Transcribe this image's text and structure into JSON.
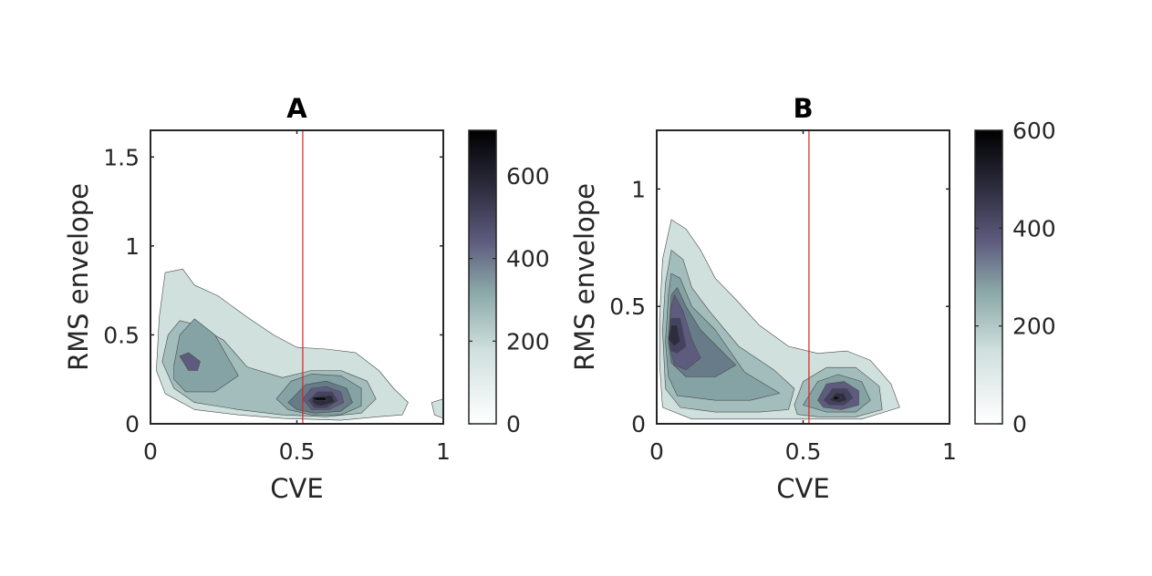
{
  "chart_data": [
    {
      "type": "contour",
      "title": "A",
      "xlabel": "CVE",
      "ylabel": "RMS envelope",
      "xlim": [
        0,
        1
      ],
      "ylim": [
        0,
        1.65
      ],
      "xticks": [
        0,
        0.5,
        1
      ],
      "xtick_labels": [
        "0",
        "0.5",
        "1"
      ],
      "yticks": [
        0,
        0.5,
        1,
        1.5
      ],
      "ytick_labels": [
        "0",
        "0.5",
        "1",
        "1.5"
      ],
      "reference_line_x": 0.52,
      "reference_line_color": "#e02020",
      "colorbar": {
        "range": [
          0,
          710
        ],
        "ticks": [
          0,
          200,
          400,
          600
        ],
        "tick_labels": [
          "0",
          "200",
          "400",
          "600"
        ]
      },
      "colormap": "bone (reversed)",
      "contour_levels": [
        {
          "level": 60,
          "color": "#cfe0dd",
          "polygons": [
            [
              [
                0.03,
                0.6
              ],
              [
                0.05,
                0.85
              ],
              [
                0.11,
                0.87
              ],
              [
                0.15,
                0.78
              ],
              [
                0.23,
                0.72
              ],
              [
                0.33,
                0.6
              ],
              [
                0.42,
                0.5
              ],
              [
                0.5,
                0.43
              ],
              [
                0.6,
                0.42
              ],
              [
                0.7,
                0.4
              ],
              [
                0.78,
                0.3
              ],
              [
                0.83,
                0.2
              ],
              [
                0.88,
                0.12
              ],
              [
                0.86,
                0.05
              ],
              [
                0.78,
                0.04
              ],
              [
                0.65,
                0.02
              ],
              [
                0.45,
                0.03
              ],
              [
                0.3,
                0.05
              ],
              [
                0.15,
                0.08
              ],
              [
                0.05,
                0.17
              ],
              [
                0.02,
                0.3
              ]
            ],
            [
              [
                0.96,
                0.12
              ],
              [
                1.0,
                0.14
              ],
              [
                1.0,
                0.03
              ],
              [
                0.97,
                0.05
              ]
            ]
          ]
        },
        {
          "level": 130,
          "color": "#a2bdbb",
          "polygons": [
            [
              [
                0.04,
                0.35
              ],
              [
                0.06,
                0.5
              ],
              [
                0.1,
                0.58
              ],
              [
                0.15,
                0.56
              ],
              [
                0.25,
                0.47
              ],
              [
                0.33,
                0.32
              ],
              [
                0.45,
                0.26
              ],
              [
                0.55,
                0.3
              ],
              [
                0.65,
                0.3
              ],
              [
                0.74,
                0.24
              ],
              [
                0.77,
                0.14
              ],
              [
                0.72,
                0.06
              ],
              [
                0.6,
                0.04
              ],
              [
                0.45,
                0.05
              ],
              [
                0.3,
                0.08
              ],
              [
                0.15,
                0.12
              ],
              [
                0.08,
                0.2
              ]
            ]
          ]
        },
        {
          "level": 220,
          "color": "#85a2a4",
          "polygons": [
            [
              [
                0.08,
                0.33
              ],
              [
                0.1,
                0.5
              ],
              [
                0.15,
                0.59
              ],
              [
                0.22,
                0.5
              ],
              [
                0.3,
                0.27
              ],
              [
                0.22,
                0.18
              ],
              [
                0.12,
                0.18
              ],
              [
                0.08,
                0.25
              ]
            ],
            [
              [
                0.43,
                0.14
              ],
              [
                0.48,
                0.24
              ],
              [
                0.55,
                0.28
              ],
              [
                0.65,
                0.27
              ],
              [
                0.72,
                0.2
              ],
              [
                0.72,
                0.1
              ],
              [
                0.65,
                0.05
              ],
              [
                0.55,
                0.05
              ],
              [
                0.47,
                0.08
              ]
            ]
          ]
        },
        {
          "level": 300,
          "color": "#677c88",
          "polygons": [
            [
              [
                0.47,
                0.12
              ],
              [
                0.53,
                0.22
              ],
              [
                0.6,
                0.24
              ],
              [
                0.67,
                0.2
              ],
              [
                0.69,
                0.12
              ],
              [
                0.65,
                0.07
              ],
              [
                0.56,
                0.06
              ],
              [
                0.5,
                0.08
              ]
            ]
          ]
        },
        {
          "level": 380,
          "color": "#5e5c7e",
          "polygons": [
            [
              [
                0.1,
                0.38
              ],
              [
                0.13,
                0.4
              ],
              [
                0.17,
                0.35
              ],
              [
                0.16,
                0.3
              ],
              [
                0.13,
                0.3
              ]
            ],
            [
              [
                0.52,
                0.14
              ],
              [
                0.55,
                0.2
              ],
              [
                0.6,
                0.21
              ],
              [
                0.65,
                0.18
              ],
              [
                0.66,
                0.12
              ],
              [
                0.61,
                0.08
              ],
              [
                0.55,
                0.08
              ]
            ]
          ]
        },
        {
          "level": 460,
          "color": "#434262",
          "polygons": [
            [
              [
                0.54,
                0.13
              ],
              [
                0.57,
                0.18
              ],
              [
                0.62,
                0.18
              ],
              [
                0.64,
                0.13
              ],
              [
                0.6,
                0.09
              ],
              [
                0.56,
                0.09
              ]
            ]
          ]
        },
        {
          "level": 540,
          "color": "#2e2d40",
          "polygons": [
            [
              [
                0.55,
                0.13
              ],
              [
                0.58,
                0.16
              ],
              [
                0.62,
                0.16
              ],
              [
                0.63,
                0.12
              ],
              [
                0.58,
                0.1
              ],
              [
                0.56,
                0.11
              ]
            ]
          ]
        },
        {
          "level": 640,
          "color": "#0d0d12",
          "polygons": [
            [
              [
                0.55,
                0.14
              ],
              [
                0.56,
                0.15
              ],
              [
                0.6,
                0.15
              ],
              [
                0.6,
                0.13
              ],
              [
                0.57,
                0.13
              ]
            ]
          ]
        }
      ]
    },
    {
      "type": "contour",
      "title": "B",
      "xlabel": "CVE",
      "ylabel": "RMS envelope",
      "xlim": [
        0,
        1
      ],
      "ylim": [
        0,
        1.25
      ],
      "xticks": [
        0,
        0.5,
        1
      ],
      "xtick_labels": [
        "0",
        "0.5",
        "1"
      ],
      "yticks": [
        0,
        0.5,
        1
      ],
      "ytick_labels": [
        "0",
        "0.5",
        "1"
      ],
      "reference_line_x": 0.52,
      "reference_line_color": "#e02020",
      "colorbar": {
        "range": [
          0,
          600
        ],
        "ticks": [
          0,
          200,
          400,
          600
        ],
        "tick_labels": [
          "0",
          "200",
          "400",
          "600"
        ]
      },
      "colormap": "bone (reversed)",
      "contour_levels": [
        {
          "level": 60,
          "color": "#cfe0dd",
          "polygons": [
            [
              [
                0.01,
                0.45
              ],
              [
                0.02,
                0.7
              ],
              [
                0.05,
                0.87
              ],
              [
                0.1,
                0.83
              ],
              [
                0.15,
                0.74
              ],
              [
                0.2,
                0.62
              ],
              [
                0.27,
                0.53
              ],
              [
                0.35,
                0.42
              ],
              [
                0.45,
                0.33
              ],
              [
                0.55,
                0.3
              ],
              [
                0.65,
                0.31
              ],
              [
                0.73,
                0.27
              ],
              [
                0.8,
                0.17
              ],
              [
                0.83,
                0.07
              ],
              [
                0.7,
                0.02
              ],
              [
                0.5,
                0.02
              ],
              [
                0.3,
                0.02
              ],
              [
                0.12,
                0.02
              ],
              [
                0.02,
                0.07
              ],
              [
                0.01,
                0.25
              ]
            ]
          ]
        },
        {
          "level": 130,
          "color": "#a2bdbb",
          "polygons": [
            [
              [
                0.02,
                0.4
              ],
              [
                0.03,
                0.6
              ],
              [
                0.05,
                0.74
              ],
              [
                0.09,
                0.7
              ],
              [
                0.12,
                0.58
              ],
              [
                0.18,
                0.48
              ],
              [
                0.28,
                0.33
              ],
              [
                0.4,
                0.23
              ],
              [
                0.47,
                0.15
              ],
              [
                0.45,
                0.06
              ],
              [
                0.35,
                0.05
              ],
              [
                0.2,
                0.05
              ],
              [
                0.08,
                0.07
              ],
              [
                0.03,
                0.15
              ]
            ],
            [
              [
                0.47,
                0.08
              ],
              [
                0.5,
                0.18
              ],
              [
                0.58,
                0.24
              ],
              [
                0.68,
                0.24
              ],
              [
                0.76,
                0.16
              ],
              [
                0.77,
                0.06
              ],
              [
                0.68,
                0.03
              ],
              [
                0.55,
                0.03
              ],
              [
                0.48,
                0.04
              ]
            ]
          ]
        },
        {
          "level": 220,
          "color": "#85a2a4",
          "polygons": [
            [
              [
                0.03,
                0.35
              ],
              [
                0.04,
                0.55
              ],
              [
                0.05,
                0.64
              ],
              [
                0.08,
                0.62
              ],
              [
                0.12,
                0.5
              ],
              [
                0.2,
                0.4
              ],
              [
                0.3,
                0.22
              ],
              [
                0.42,
                0.13
              ],
              [
                0.32,
                0.1
              ],
              [
                0.2,
                0.1
              ],
              [
                0.07,
                0.12
              ],
              [
                0.04,
                0.2
              ]
            ],
            [
              [
                0.5,
                0.08
              ],
              [
                0.55,
                0.18
              ],
              [
                0.62,
                0.21
              ],
              [
                0.7,
                0.18
              ],
              [
                0.73,
                0.1
              ],
              [
                0.68,
                0.05
              ],
              [
                0.58,
                0.05
              ]
            ]
          ]
        },
        {
          "level": 300,
          "color": "#677c88",
          "polygons": [
            [
              [
                0.04,
                0.35
              ],
              [
                0.05,
                0.55
              ],
              [
                0.07,
                0.58
              ],
              [
                0.1,
                0.5
              ],
              [
                0.15,
                0.4
              ],
              [
                0.27,
                0.25
              ],
              [
                0.2,
                0.2
              ],
              [
                0.1,
                0.2
              ],
              [
                0.05,
                0.26
              ]
            ]
          ]
        },
        {
          "level": 380,
          "color": "#5e5c7e",
          "polygons": [
            [
              [
                0.04,
                0.35
              ],
              [
                0.05,
                0.5
              ],
              [
                0.06,
                0.55
              ],
              [
                0.09,
                0.48
              ],
              [
                0.12,
                0.36
              ],
              [
                0.15,
                0.28
              ],
              [
                0.1,
                0.23
              ],
              [
                0.06,
                0.25
              ]
            ],
            [
              [
                0.55,
                0.1
              ],
              [
                0.58,
                0.17
              ],
              [
                0.64,
                0.18
              ],
              [
                0.69,
                0.14
              ],
              [
                0.69,
                0.08
              ],
              [
                0.63,
                0.06
              ],
              [
                0.57,
                0.07
              ]
            ]
          ]
        },
        {
          "level": 460,
          "color": "#434262",
          "polygons": [
            [
              [
                0.04,
                0.37
              ],
              [
                0.05,
                0.45
              ],
              [
                0.08,
                0.45
              ],
              [
                0.1,
                0.33
              ],
              [
                0.07,
                0.3
              ],
              [
                0.05,
                0.31
              ]
            ],
            [
              [
                0.57,
                0.1
              ],
              [
                0.6,
                0.15
              ],
              [
                0.65,
                0.15
              ],
              [
                0.67,
                0.11
              ],
              [
                0.64,
                0.08
              ],
              [
                0.59,
                0.08
              ]
            ]
          ]
        },
        {
          "level": 540,
          "color": "#2e2d40",
          "polygons": [
            [
              [
                0.04,
                0.36
              ],
              [
                0.05,
                0.42
              ],
              [
                0.07,
                0.42
              ],
              [
                0.08,
                0.35
              ],
              [
                0.06,
                0.33
              ]
            ],
            [
              [
                0.59,
                0.1
              ],
              [
                0.61,
                0.13
              ],
              [
                0.64,
                0.13
              ],
              [
                0.65,
                0.1
              ],
              [
                0.62,
                0.09
              ]
            ]
          ]
        },
        {
          "level": 600,
          "color": "#0d0d12",
          "polygons": [
            [
              [
                0.6,
                0.11
              ],
              [
                0.61,
                0.12
              ],
              [
                0.63,
                0.11
              ],
              [
                0.61,
                0.1
              ]
            ]
          ]
        }
      ]
    }
  ]
}
